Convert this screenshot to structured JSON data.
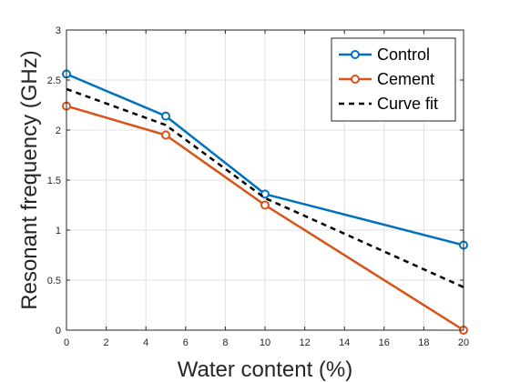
{
  "chart_data": {
    "type": "line",
    "xlabel": "Water content (%)",
    "ylabel": "Resonant frequency (GHz)",
    "xlim": [
      0,
      20
    ],
    "ylim": [
      0,
      3
    ],
    "xticks": [
      0,
      2,
      4,
      6,
      8,
      10,
      12,
      14,
      16,
      18,
      20
    ],
    "yticks": [
      0,
      0.5,
      1,
      1.5,
      2,
      2.5,
      3
    ],
    "grid": true,
    "legend_position": "top-right",
    "series": [
      {
        "name": "Control",
        "x": [
          0,
          5,
          10,
          20
        ],
        "y": [
          2.56,
          2.14,
          1.36,
          0.85
        ],
        "color": "#0072BD",
        "style": "solid",
        "marker": "circle"
      },
      {
        "name": "Cement",
        "x": [
          0,
          5,
          10,
          20
        ],
        "y": [
          2.24,
          1.95,
          1.25,
          0.0
        ],
        "color": "#D95319",
        "style": "solid",
        "marker": "circle"
      },
      {
        "name": "Curve fit",
        "x": [
          0,
          5,
          10,
          20
        ],
        "y": [
          2.41,
          2.05,
          1.32,
          0.43
        ],
        "color": "#000000",
        "style": "dashed",
        "marker": "none"
      }
    ]
  }
}
